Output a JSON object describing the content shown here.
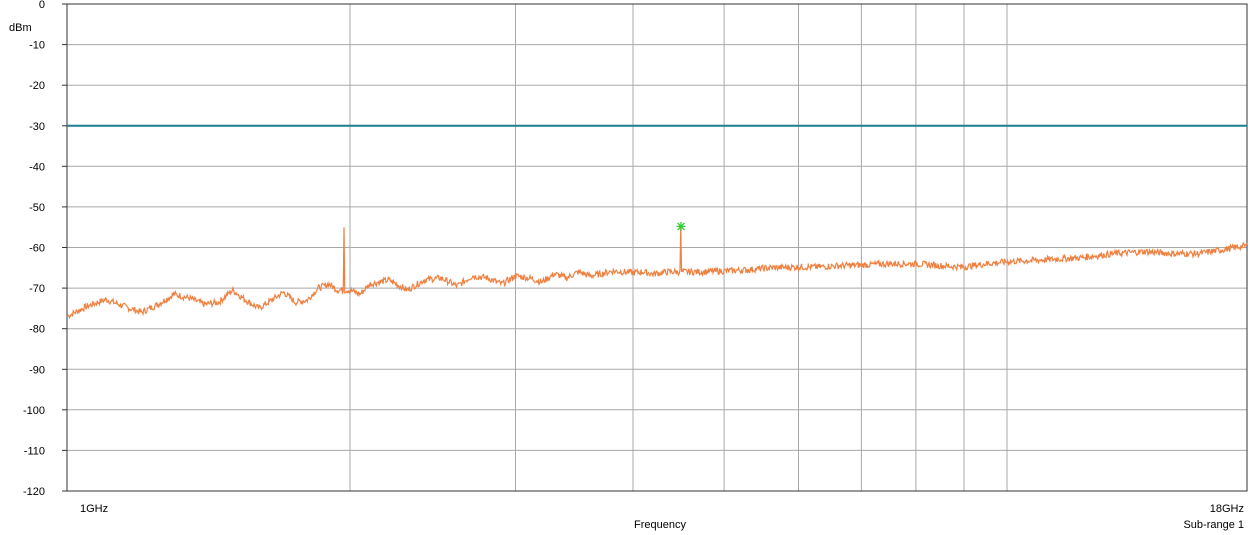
{
  "chart_data": {
    "type": "line",
    "title": "",
    "ylabel": "dBm",
    "xlabel": "Frequency",
    "sub_range_label": "Sub-range 1",
    "x_scale": "log",
    "xlim_ghz": [
      1,
      18
    ],
    "x_tick_labels": [
      "1GHz",
      "18GHz"
    ],
    "x_gridlines_ghz": [
      2,
      3,
      4,
      5,
      6,
      7,
      8,
      9,
      10
    ],
    "ylim": [
      -120,
      0
    ],
    "y_ticks": [
      0,
      -10,
      -20,
      -30,
      -40,
      -50,
      -60,
      -70,
      -80,
      -90,
      -100,
      -110,
      -120
    ],
    "grid": true,
    "limit_line": {
      "value": -30,
      "color": "#1a7f8e"
    },
    "trace_color": "#f08040",
    "marker": {
      "x_ghz": 4.5,
      "y": -54.8,
      "color": "#33cc33"
    },
    "series": [
      {
        "points": [
          [
            1.0,
            -77
          ],
          [
            1.05,
            -74.5
          ],
          [
            1.1,
            -72.8
          ],
          [
            1.15,
            -74.5
          ],
          [
            1.2,
            -76
          ],
          [
            1.25,
            -74
          ],
          [
            1.3,
            -71.5
          ],
          [
            1.35,
            -72.5
          ],
          [
            1.4,
            -74
          ],
          [
            1.45,
            -73.5
          ],
          [
            1.5,
            -70.5
          ],
          [
            1.55,
            -73
          ],
          [
            1.6,
            -75
          ],
          [
            1.65,
            -73
          ],
          [
            1.7,
            -71
          ],
          [
            1.75,
            -73.5
          ],
          [
            1.8,
            -73
          ],
          [
            1.85,
            -70
          ],
          [
            1.9,
            -69
          ],
          [
            1.94,
            -70.5
          ],
          [
            1.97,
            -55
          ],
          [
            2.0,
            -70.5
          ],
          [
            2.05,
            -71.5
          ],
          [
            2.1,
            -69
          ],
          [
            2.2,
            -68
          ],
          [
            2.3,
            -70.5
          ],
          [
            2.4,
            -68
          ],
          [
            2.5,
            -67.5
          ],
          [
            2.6,
            -69.5
          ],
          [
            2.7,
            -67
          ],
          [
            2.8,
            -67.5
          ],
          [
            2.9,
            -69
          ],
          [
            3.0,
            -67
          ],
          [
            3.1,
            -67.5
          ],
          [
            3.2,
            -68.5
          ],
          [
            3.3,
            -66.5
          ],
          [
            3.4,
            -67.5
          ],
          [
            3.5,
            -66
          ],
          [
            3.6,
            -67
          ],
          [
            3.7,
            -66.5
          ],
          [
            3.8,
            -65.8
          ],
          [
            3.9,
            -66
          ],
          [
            4.0,
            -66.2
          ],
          [
            4.1,
            -66
          ],
          [
            4.2,
            -66.5
          ],
          [
            4.35,
            -66
          ],
          [
            4.48,
            -66
          ],
          [
            4.5,
            -54.8
          ],
          [
            4.52,
            -66
          ],
          [
            4.7,
            -66
          ],
          [
            5.0,
            -65.8
          ],
          [
            5.3,
            -65.5
          ],
          [
            5.6,
            -65
          ],
          [
            6.0,
            -64.8
          ],
          [
            6.3,
            -64.8
          ],
          [
            6.6,
            -64.5
          ],
          [
            7.0,
            -64.3
          ],
          [
            7.5,
            -64
          ],
          [
            8.0,
            -64
          ],
          [
            8.5,
            -64.5
          ],
          [
            9.0,
            -64.8
          ],
          [
            9.5,
            -64
          ],
          [
            10.0,
            -63.5
          ],
          [
            11.0,
            -63
          ],
          [
            12.0,
            -62.5
          ],
          [
            13.0,
            -61.5
          ],
          [
            14.0,
            -61
          ],
          [
            15.0,
            -61.5
          ],
          [
            16.0,
            -61.5
          ],
          [
            17.0,
            -60.5
          ],
          [
            18.0,
            -59.5
          ]
        ]
      }
    ]
  }
}
